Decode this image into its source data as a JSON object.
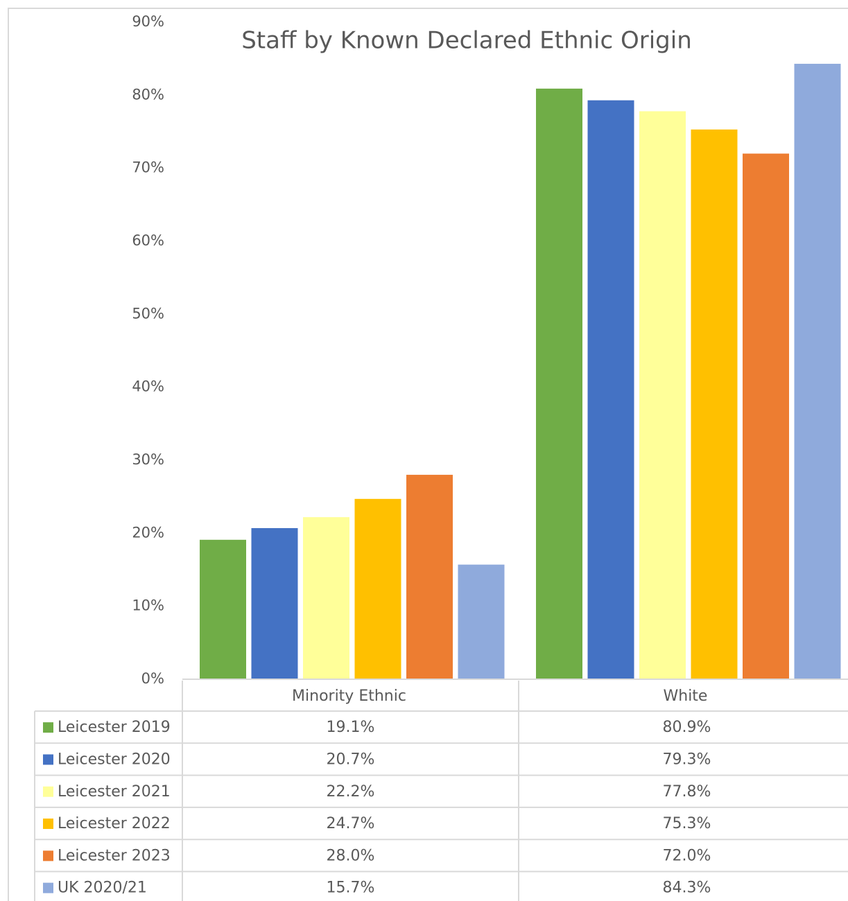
{
  "chart_data": {
    "type": "bar",
    "title": "Staff by Known Declared Ethnic Origin",
    "categories": [
      "Minority Ethnic",
      "White"
    ],
    "series": [
      {
        "name": "Leicester 2019",
        "color": "#70ad47",
        "values": [
          19.1,
          80.9
        ],
        "value_labels": [
          "19.1%",
          "80.9%"
        ]
      },
      {
        "name": "Leicester 2020",
        "color": "#4472c4",
        "values": [
          20.7,
          79.3
        ],
        "value_labels": [
          "20.7%",
          "79.3%"
        ]
      },
      {
        "name": "Leicester 2021",
        "color": "#ffff99",
        "values": [
          22.2,
          77.8
        ],
        "value_labels": [
          "22.2%",
          "77.8%"
        ]
      },
      {
        "name": "Leicester 2022",
        "color": "#ffc000",
        "values": [
          24.7,
          75.3
        ],
        "value_labels": [
          "24.7%",
          "75.3%"
        ]
      },
      {
        "name": "Leicester 2023",
        "color": "#ed7d31",
        "values": [
          28.0,
          72.0
        ],
        "value_labels": [
          "28.0%",
          "72.0%"
        ]
      },
      {
        "name": "UK 2020/21",
        "color": "#8faadc",
        "values": [
          15.7,
          84.3
        ],
        "value_labels": [
          "15.7%",
          "84.3%"
        ]
      }
    ],
    "ylim": [
      0,
      90
    ],
    "yticks": [
      {
        "value": 0,
        "label": "0%"
      },
      {
        "value": 10,
        "label": "10%"
      },
      {
        "value": 20,
        "label": "20%"
      },
      {
        "value": 30,
        "label": "30%"
      },
      {
        "value": 40,
        "label": "40%"
      },
      {
        "value": 50,
        "label": "50%"
      },
      {
        "value": 60,
        "label": "60%"
      },
      {
        "value": 70,
        "label": "70%"
      },
      {
        "value": 80,
        "label": "80%"
      },
      {
        "value": 90,
        "label": "90%"
      }
    ],
    "grid": false
  }
}
